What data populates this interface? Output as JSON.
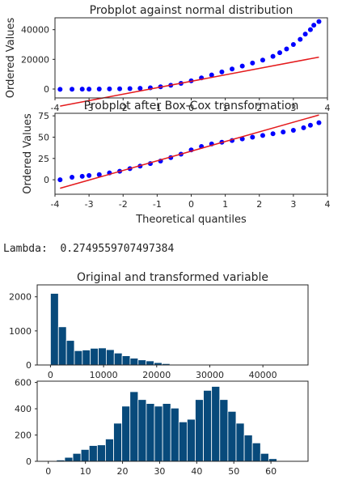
{
  "chart_data": [
    {
      "type": "scatter",
      "title": "Probplot against normal distribution",
      "xlabel": "",
      "ylabel": "Ordered Values",
      "xlim": [
        -4,
        4
      ],
      "ylim": [
        -6000,
        48000
      ],
      "xticks": [
        -4,
        -3,
        -2,
        -1,
        0,
        1,
        2,
        3,
        4
      ],
      "yticks": [
        0,
        20000,
        40000
      ],
      "grid": false,
      "series": [
        {
          "kind": "points",
          "color": "#0000ff",
          "x": [
            -3.85,
            -3.5,
            -3.2,
            -3.0,
            -2.7,
            -2.4,
            -2.1,
            -1.8,
            -1.5,
            -1.2,
            -0.9,
            -0.6,
            -0.3,
            0.0,
            0.3,
            0.6,
            0.9,
            1.2,
            1.5,
            1.8,
            2.1,
            2.4,
            2.6,
            2.8,
            3.0,
            3.2,
            3.35,
            3.5,
            3.6,
            3.75
          ],
          "y": [
            -200,
            -150,
            -100,
            -50,
            0,
            50,
            150,
            300,
            500,
            800,
            1500,
            2500,
            3800,
            5500,
            7500,
            9500,
            11500,
            13500,
            15500,
            17500,
            19500,
            22000,
            24500,
            27000,
            30000,
            33500,
            37000,
            40000,
            43000,
            45500
          ]
        },
        {
          "kind": "line",
          "color": "#e41a1c",
          "x": [
            -3.85,
            3.75
          ],
          "y": [
            -11500,
            21500
          ]
        }
      ]
    },
    {
      "type": "scatter",
      "title": "Probplot after Box-Cox transformation",
      "xlabel": "Theoretical quantiles",
      "ylabel": "Ordered Values",
      "xlim": [
        -4,
        4
      ],
      "ylim": [
        -17,
        78
      ],
      "xticks": [
        -4,
        -3,
        -2,
        -1,
        0,
        1,
        2,
        3,
        4
      ],
      "yticks": [
        0,
        25,
        50,
        75
      ],
      "grid": false,
      "series": [
        {
          "kind": "points",
          "color": "#0000ff",
          "x": [
            -3.85,
            -3.5,
            -3.2,
            -3.0,
            -2.7,
            -2.4,
            -2.1,
            -1.8,
            -1.5,
            -1.2,
            -0.9,
            -0.6,
            -0.3,
            0.0,
            0.3,
            0.6,
            0.9,
            1.2,
            1.5,
            1.8,
            2.1,
            2.4,
            2.7,
            3.0,
            3.3,
            3.5,
            3.75
          ],
          "y": [
            0,
            3,
            4,
            5,
            6,
            8,
            10,
            13,
            16,
            19,
            22,
            26,
            30,
            35,
            39,
            42,
            44,
            46,
            48,
            50,
            52,
            54,
            56,
            58,
            61,
            64,
            67
          ]
        },
        {
          "kind": "line",
          "color": "#e41a1c",
          "x": [
            -3.85,
            3.75
          ],
          "y": [
            -10,
            76
          ]
        }
      ]
    },
    {
      "type": "bar",
      "title": "Original and transformed variable",
      "xlabel": "",
      "ylabel": "",
      "xlim": [
        -2500,
        48500
      ],
      "ylim": [
        0,
        2350
      ],
      "xticks": [
        0,
        10000,
        20000,
        30000,
        40000
      ],
      "yticks": [
        0,
        1000,
        2000
      ],
      "bin_width": 1500,
      "bin_start": 0,
      "color": "#084a7b",
      "values": [
        2100,
        1120,
        720,
        420,
        440,
        490,
        500,
        450,
        350,
        270,
        200,
        150,
        120,
        70,
        40,
        20,
        8,
        4,
        2,
        1,
        1,
        0,
        0,
        0,
        0,
        0,
        0,
        0,
        0,
        0,
        1
      ]
    },
    {
      "type": "bar",
      "title": "",
      "xlabel": "",
      "ylabel": "",
      "xlim": [
        -3,
        70
      ],
      "ylim": [
        0,
        610
      ],
      "xticks": [
        0,
        10,
        20,
        30,
        40,
        50,
        60
      ],
      "yticks": [
        0,
        200,
        400,
        600
      ],
      "bin_width": 2.2,
      "bin_start": 2.2,
      "color": "#084a7b",
      "values": [
        10,
        30,
        60,
        90,
        120,
        125,
        170,
        290,
        420,
        530,
        470,
        440,
        420,
        440,
        405,
        300,
        320,
        470,
        540,
        570,
        470,
        380,
        290,
        200,
        140,
        60,
        20
      ]
    }
  ],
  "lambda_line": "Lambda:  0.2749559707497384"
}
